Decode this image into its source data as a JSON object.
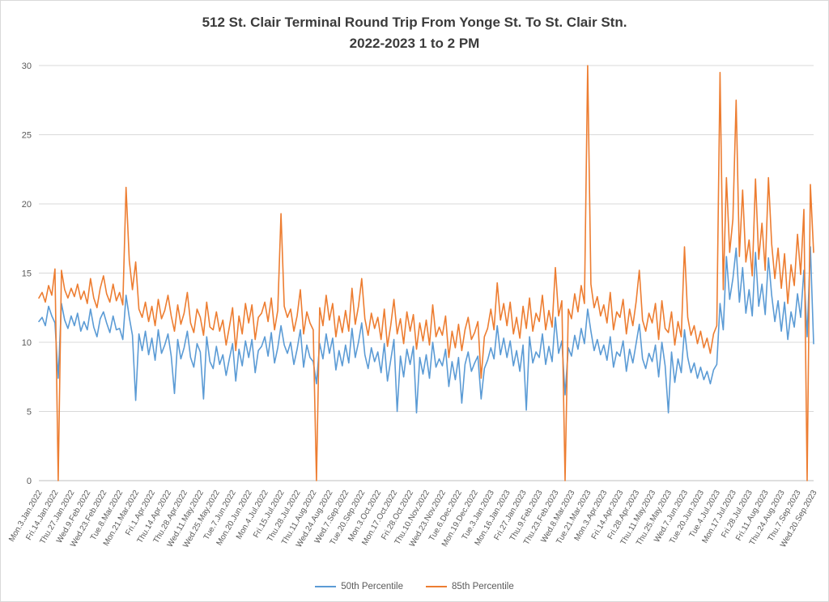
{
  "title": {
    "line1": "512 St. Clair Terminal Round Trip From Yonge St. To St. Clair Stn.",
    "line2": "2022-2023 1 to 2 PM"
  },
  "legend": [
    {
      "label": "50th Percentile",
      "color": "#5B9BD5"
    },
    {
      "label": "85th Percentile",
      "color": "#ED7D31"
    }
  ],
  "colors": {
    "gridline": "#d9d9d9",
    "axis": "#bfbfbf",
    "tick_text": "#595959",
    "title_text": "#3b3b3b"
  },
  "chart_data": {
    "type": "line",
    "title": "512 St. Clair Terminal Round Trip From Yonge St. To St. Clair Stn. 2022-2023 1 to 2 PM",
    "xlabel": "",
    "ylabel": "",
    "ylim": [
      0,
      30
    ],
    "yticks": [
      0,
      5,
      10,
      15,
      20,
      25,
      30
    ],
    "grid": true,
    "legend_position": "bottom",
    "x_tick_every": 5,
    "x_tick_labels": [
      "Mon.3.Jan.2022",
      "Fri.14.Jan.2022",
      "Thu.27.Jan.2022",
      "Wed.9.Feb.2022",
      "Wed.23.Feb.2022",
      "Tue.8.Mar.2022",
      "Mon.21.Mar.2022",
      "Fri.1.Apr.2022",
      "Thu.14.Apr.2022",
      "Thu.28.Apr.2022",
      "Wed.11.May.2022",
      "Wed.25.May.2022",
      "Tue.7.Jun.2022",
      "Mon.20.Jun.2022",
      "Mon.4.Jul.2022",
      "Fri.15.Jul.2022",
      "Thu.28.Jul.2022",
      "Thu.11.Aug.2022",
      "Wed.24.Aug.2022",
      "Wed.7.Sep.2022",
      "Tue.20.Sep.2022",
      "Mon.3.Oct.2022",
      "Mon.17.Oct.2022",
      "Fri.28.Oct.2022",
      "Thu.10.Nov.2022",
      "Wed.23.Nov.2022",
      "Tue.6.Dec.2022",
      "Mon.19.Dec.2022",
      "Tue.3.Jan.2023",
      "Mon.16.Jan.2023",
      "Fri.27.Jan.2023",
      "Thu.9.Feb.2023",
      "Thu.23.Feb.2023",
      "Wed.8.Mar.2023",
      "Tue.21.Mar.2023",
      "Mon.3.Apr.2023",
      "Fri.14.Apr.2023",
      "Fri.28.Apr.2023",
      "Thu.11.May.2023",
      "Thu.25.May.2023",
      "Wed.7.Jun.2023",
      "Tue.20.Jun.2023",
      "Tue.4.Jul.2023",
      "Mon.17.Jul.2023",
      "Fri.28.Jul.2023",
      "Fri.11.Aug.2023",
      "Thu.24.Aug.2023",
      "Thu.7.Sep.2023",
      "Wed.20.Sep.2023"
    ],
    "series": [
      {
        "name": "50th Percentile",
        "color": "#5B9BD5",
        "values": [
          11.5,
          11.8,
          11.2,
          12.6,
          11.9,
          11.4,
          7.4,
          12.8,
          11.6,
          11.0,
          11.9,
          11.2,
          12.1,
          10.8,
          11.5,
          10.9,
          12.4,
          11.1,
          10.4,
          11.7,
          12.2,
          11.4,
          10.7,
          11.9,
          10.9,
          11.0,
          10.2,
          13.4,
          11.8,
          10.5,
          5.8,
          10.6,
          9.4,
          10.8,
          9.1,
          10.3,
          8.7,
          10.9,
          9.2,
          9.8,
          10.6,
          9.0,
          6.3,
          10.2,
          8.8,
          9.6,
          10.8,
          8.9,
          8.2,
          9.9,
          9.3,
          5.9,
          10.4,
          8.6,
          8.1,
          9.7,
          8.4,
          9.1,
          7.6,
          8.8,
          9.9,
          7.2,
          9.5,
          8.3,
          10.1,
          8.9,
          10.2,
          7.8,
          9.4,
          9.7,
          10.4,
          9.0,
          10.7,
          8.5,
          9.6,
          11.2,
          9.8,
          9.2,
          10.0,
          8.4,
          9.5,
          10.9,
          8.2,
          9.8,
          8.9,
          8.6,
          7.0,
          9.9,
          8.8,
          10.6,
          9.2,
          10.3,
          8.0,
          9.4,
          8.3,
          9.8,
          8.5,
          11.0,
          8.9,
          10.0,
          11.4,
          9.1,
          8.1,
          9.6,
          8.6,
          9.3,
          7.8,
          9.9,
          7.2,
          8.7,
          10.2,
          5.0,
          9.0,
          7.5,
          9.5,
          8.4,
          9.7,
          4.9,
          8.9,
          7.7,
          9.1,
          7.4,
          10.0,
          8.2,
          8.8,
          8.3,
          9.5,
          6.8,
          8.6,
          7.3,
          8.9,
          5.6,
          8.4,
          9.3,
          7.9,
          8.5,
          9.0,
          5.9,
          8.1,
          8.7,
          9.6,
          8.8,
          11.2,
          9.1,
          10.3,
          8.9,
          10.1,
          8.3,
          9.4,
          7.9,
          9.8,
          5.1,
          10.4,
          8.5,
          9.3,
          8.9,
          10.6,
          8.4,
          9.7,
          8.6,
          11.8,
          9.2,
          10.1,
          6.2,
          9.6,
          9.0,
          10.5,
          9.5,
          11.0,
          9.9,
          12.4,
          10.8,
          9.4,
          10.2,
          9.1,
          9.8,
          8.7,
          10.4,
          8.2,
          9.3,
          9.0,
          10.1,
          7.9,
          9.5,
          8.5,
          9.9,
          11.3,
          8.8,
          8.1,
          9.2,
          8.6,
          9.8,
          7.5,
          10.0,
          8.3,
          4.9,
          9.3,
          7.1,
          8.8,
          7.8,
          10.9,
          8.9,
          7.8,
          8.5,
          7.4,
          8.2,
          7.3,
          7.9,
          7.0,
          8.0,
          8.4,
          12.8,
          10.9,
          16.2,
          13.1,
          14.6,
          16.8,
          12.9,
          15.4,
          12.1,
          13.8,
          11.9,
          16.5,
          12.6,
          14.2,
          12.0,
          16.1,
          13.4,
          11.5,
          13.0,
          10.8,
          12.9,
          10.2,
          12.2,
          11.1,
          13.5,
          11.8,
          15.2,
          10.4,
          16.9,
          9.9
        ]
      },
      {
        "name": "85th Percentile",
        "color": "#ED7D31",
        "values": [
          13.2,
          13.6,
          12.9,
          14.1,
          13.4,
          15.3,
          0,
          15.2,
          13.8,
          13.2,
          13.9,
          13.3,
          14.2,
          13.1,
          13.7,
          12.8,
          14.6,
          13.2,
          12.5,
          13.9,
          14.8,
          13.5,
          12.9,
          14.2,
          13.0,
          13.6,
          12.7,
          21.2,
          15.9,
          13.8,
          15.8,
          12.4,
          11.8,
          12.9,
          11.5,
          12.6,
          11.2,
          13.1,
          11.7,
          12.3,
          13.4,
          11.9,
          10.8,
          12.7,
          11.3,
          12.1,
          13.6,
          11.4,
          10.7,
          12.4,
          11.8,
          10.5,
          12.9,
          11.1,
          10.9,
          12.2,
          10.8,
          11.6,
          9.8,
          11.1,
          12.5,
          9.4,
          11.9,
          10.6,
          12.8,
          11.4,
          12.7,
          10.2,
          11.8,
          12.1,
          12.9,
          11.5,
          13.2,
          10.9,
          12.3,
          19.3,
          12.6,
          11.8,
          12.4,
          10.8,
          11.9,
          13.8,
          10.6,
          12.2,
          11.4,
          10.9,
          0,
          12.5,
          11.2,
          13.4,
          11.6,
          12.8,
          10.4,
          11.9,
          10.7,
          12.3,
          10.8,
          13.9,
          11.3,
          12.6,
          14.6,
          11.7,
          10.5,
          12.1,
          11.0,
          11.8,
          10.2,
          12.4,
          9.7,
          11.2,
          13.1,
          10.6,
          11.7,
          9.9,
          12.2,
          10.8,
          12.0,
          9.5,
          11.4,
          10.1,
          11.6,
          9.8,
          12.7,
          10.4,
          11.1,
          10.5,
          11.9,
          8.9,
          10.8,
          9.6,
          11.3,
          9.4,
          10.9,
          11.8,
          10.2,
          10.7,
          11.5,
          7.4,
          10.4,
          11.0,
          12.4,
          10.9,
          14.3,
          11.6,
          12.8,
          11.2,
          12.9,
          10.6,
          11.8,
          10.3,
          12.6,
          11.0,
          13.2,
          10.8,
          12.1,
          11.5,
          13.4,
          10.9,
          12.3,
          11.1,
          15.4,
          11.9,
          13.0,
          0,
          12.4,
          11.7,
          13.5,
          12.2,
          14.1,
          12.8,
          30,
          14.2,
          12.5,
          13.3,
          11.9,
          12.7,
          11.4,
          13.6,
          10.9,
          12.2,
          11.8,
          13.1,
          10.6,
          12.4,
          11.2,
          12.9,
          15.2,
          11.6,
          10.8,
          12.1,
          11.4,
          12.8,
          10.2,
          13.0,
          11.0,
          10.7,
          12.2,
          9.8,
          11.5,
          10.4,
          16.9,
          11.8,
          10.5,
          11.2,
          9.9,
          10.8,
          9.6,
          10.3,
          9.2,
          10.6,
          11.2,
          29.5,
          13.8,
          21.9,
          16.5,
          18.9,
          27.5,
          16.2,
          21.0,
          15.8,
          17.4,
          14.8,
          21.8,
          16.0,
          18.6,
          15.2,
          21.9,
          17.1,
          14.6,
          16.8,
          13.9,
          16.4,
          12.8,
          15.6,
          14.1,
          17.8,
          14.9,
          19.6,
          0,
          21.4,
          16.5
        ]
      }
    ]
  }
}
